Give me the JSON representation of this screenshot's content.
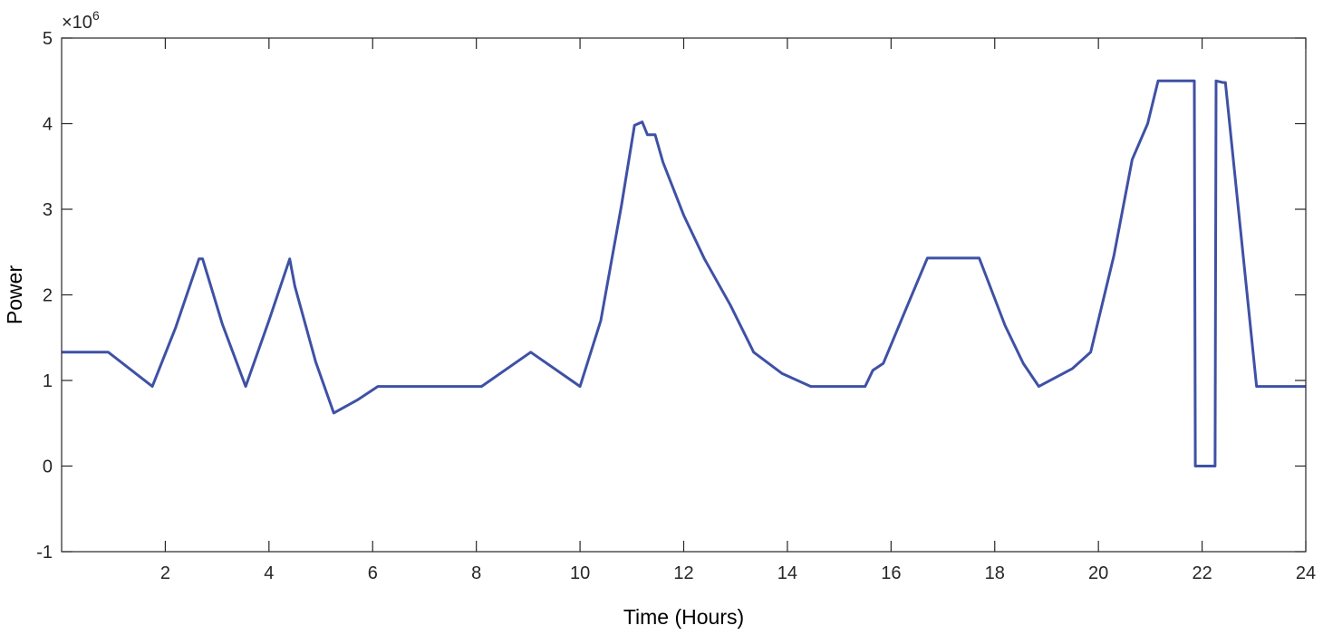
{
  "chart_data": {
    "type": "line",
    "xlabel": "Time (Hours)",
    "ylabel": "Power",
    "y_exponent_base": "×10",
    "y_exponent_power": "6",
    "xlim": [
      0,
      24
    ],
    "ylim": [
      -1,
      5
    ],
    "x_ticks": [
      2,
      4,
      6,
      8,
      10,
      12,
      14,
      16,
      18,
      20,
      22,
      24
    ],
    "y_ticks": [
      -1,
      0,
      1,
      2,
      3,
      4,
      5
    ],
    "grid": false,
    "line_color": "#3f51a5",
    "series": [
      {
        "x": [
          0,
          0.9,
          1.75,
          2.2,
          2.65,
          2.72,
          3.1,
          3.55,
          4.0,
          4.4,
          4.5,
          4.9,
          5.25,
          5.7,
          6.1,
          8.1,
          9.05,
          10.0,
          10.4,
          10.8,
          11.05,
          11.2,
          11.3,
          11.45,
          11.6,
          12.0,
          12.4,
          12.9,
          13.35,
          13.9,
          14.45,
          15.5,
          15.65,
          15.85,
          16.25,
          16.7,
          17.7,
          18.2,
          18.55,
          18.85,
          19.5,
          19.85,
          20.3,
          20.65,
          20.95,
          21.15,
          21.85,
          21.87,
          22.25,
          22.27,
          22.4,
          22.45,
          23.05,
          24.0
        ],
        "y": [
          1.33,
          1.33,
          0.93,
          1.62,
          2.42,
          2.42,
          1.66,
          0.93,
          1.7,
          2.42,
          2.1,
          1.22,
          0.62,
          0.77,
          0.93,
          0.93,
          1.33,
          0.93,
          1.7,
          3.05,
          3.98,
          4.02,
          3.87,
          3.87,
          3.55,
          2.93,
          2.42,
          1.88,
          1.33,
          1.08,
          0.93,
          0.93,
          1.12,
          1.2,
          1.78,
          2.43,
          2.43,
          1.64,
          1.2,
          0.93,
          1.14,
          1.33,
          2.46,
          3.58,
          4.0,
          4.5,
          4.5,
          0.0,
          0.0,
          4.5,
          4.48,
          4.48,
          0.93,
          0.93
        ]
      }
    ]
  }
}
